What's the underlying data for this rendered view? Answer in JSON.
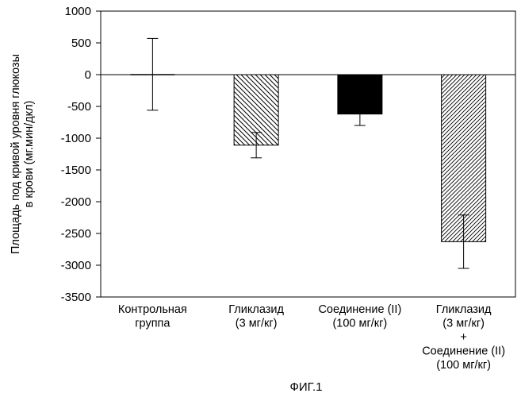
{
  "figure_caption": "ФИГ.1",
  "chart_data": {
    "type": "bar",
    "title": "",
    "xlabel": "",
    "ylabel": [
      "Площадь под кривой уровня глюкозы",
      "в крови (мг.мин/дкл)"
    ],
    "ylim": [
      -3500,
      1000
    ],
    "yticks": [
      1000,
      500,
      0,
      -500,
      -1000,
      -1500,
      -2000,
      -2500,
      -3000,
      -3500
    ],
    "ytick_labels": [
      "1000",
      "500",
      "0",
      "-500",
      "-1000",
      "-1500",
      "-2000",
      "-2500",
      "-3000",
      "-3500"
    ],
    "grid": false,
    "legend": "none",
    "categories": [
      [
        "Контрольная",
        "группа"
      ],
      [
        "Гликлазид",
        "(3 мг/кг)"
      ],
      [
        "Соединение (II)",
        "(100 мг/кг)"
      ],
      [
        "Гликлазид",
        "(3 мг/кг)",
        "+",
        "Соединение (II)",
        "(100 мг/кг)"
      ]
    ],
    "values": [
      0,
      -1110,
      -620,
      -2630
    ],
    "error_low": [
      -560,
      -1310,
      -800,
      -3050
    ],
    "error_high": [
      570,
      -910,
      -450,
      -2210
    ],
    "fills": [
      "none",
      "hatch-back",
      "solid",
      "hatch-fwd"
    ],
    "colors": {
      "bar": "#000000",
      "background": "#ffffff"
    }
  }
}
